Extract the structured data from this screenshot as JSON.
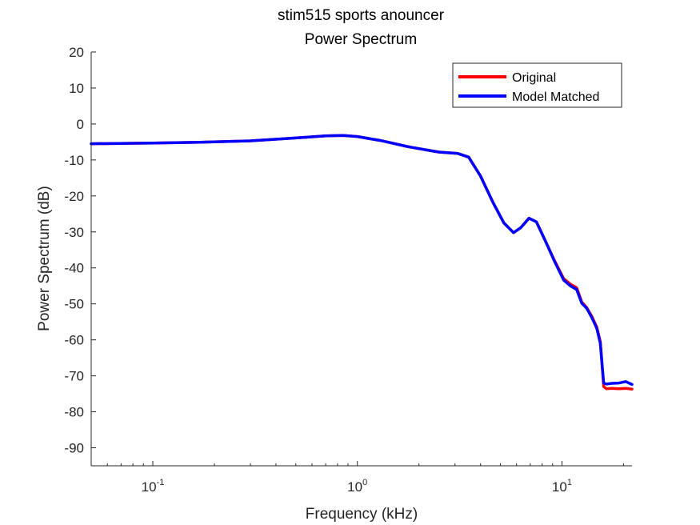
{
  "chart_data": {
    "type": "line",
    "title": [
      "stim515 sports anouncer",
      "Power Spectrum"
    ],
    "xlabel": "Frequency (kHz)",
    "ylabel": "Power Spectrum (dB)",
    "xscale": "log",
    "xlim": [
      0.05,
      22
    ],
    "ylim": [
      -95,
      20
    ],
    "yticks": [
      20,
      10,
      0,
      -10,
      -20,
      -30,
      -40,
      -50,
      -60,
      -70,
      -80,
      -90
    ],
    "xticks": [
      {
        "base": "10",
        "exp": "-1",
        "value": 0.1
      },
      {
        "base": "10",
        "exp": "0",
        "value": 1
      },
      {
        "base": "10",
        "exp": "1",
        "value": 10
      }
    ],
    "grid": false,
    "legend_position": "top-right",
    "series": [
      {
        "name": "Original",
        "color": "#ff0000",
        "x": [
          0.05,
          0.1,
          0.17,
          0.3,
          0.5,
          0.7,
          0.85,
          1.0,
          1.3,
          1.8,
          2.5,
          3.1,
          3.5,
          4.0,
          4.6,
          5.2,
          5.8,
          6.3,
          6.9,
          7.5,
          8.3,
          9.2,
          10.2,
          11.0,
          11.8,
          12.5,
          13.2,
          14.0,
          14.8,
          15.4,
          16.0,
          16.5,
          17.5,
          19.0,
          20.5,
          22.0
        ],
        "y": [
          -5.5,
          -5.3,
          -5.1,
          -4.7,
          -3.9,
          -3.3,
          -3.2,
          -3.5,
          -4.6,
          -6.4,
          -7.8,
          -8.2,
          -9.2,
          -14.5,
          -21.8,
          -27.5,
          -30.2,
          -28.8,
          -26.2,
          -27.2,
          -32.5,
          -38.0,
          -43.0,
          -44.5,
          -45.5,
          -49.5,
          -51.0,
          -53.5,
          -56.5,
          -60.5,
          -73.0,
          -73.6,
          -73.5,
          -73.6,
          -73.5,
          -73.7
        ]
      },
      {
        "name": "Model Matched",
        "color": "#0000ff",
        "x": [
          0.05,
          0.1,
          0.17,
          0.3,
          0.5,
          0.7,
          0.85,
          1.0,
          1.3,
          1.8,
          2.5,
          3.1,
          3.5,
          4.0,
          4.6,
          5.2,
          5.8,
          6.3,
          6.9,
          7.5,
          8.3,
          9.2,
          10.2,
          11.0,
          11.8,
          12.5,
          13.2,
          14.0,
          14.8,
          15.4,
          16.0,
          16.5,
          17.5,
          19.0,
          20.5,
          22.0
        ],
        "y": [
          -5.5,
          -5.3,
          -5.1,
          -4.7,
          -3.9,
          -3.3,
          -3.2,
          -3.5,
          -4.6,
          -6.4,
          -7.8,
          -8.2,
          -9.2,
          -14.5,
          -21.8,
          -27.5,
          -30.2,
          -28.8,
          -26.2,
          -27.2,
          -32.5,
          -38.2,
          -43.4,
          -45.0,
          -46.0,
          -49.8,
          -51.2,
          -53.8,
          -56.8,
          -61.0,
          -72.0,
          -72.3,
          -72.1,
          -72.0,
          -71.6,
          -72.4
        ]
      }
    ]
  }
}
